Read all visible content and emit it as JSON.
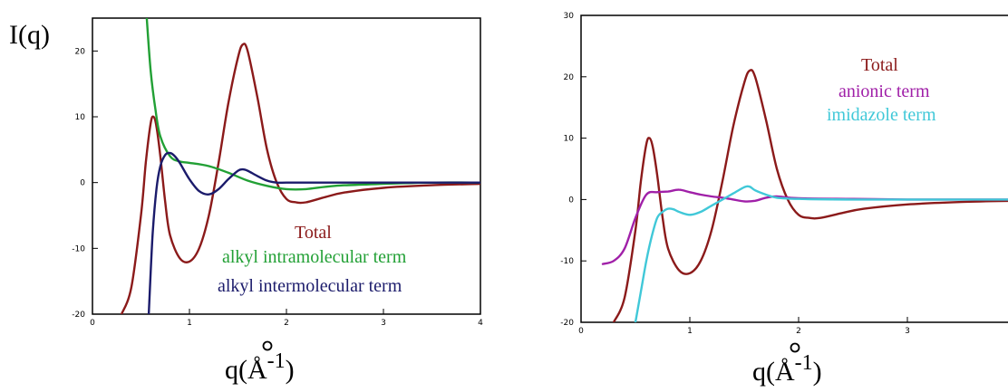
{
  "chart_data": [
    {
      "type": "line",
      "ylabel": "I(q)",
      "xlabel_base": "q(Å",
      "xlabel_exp": "-1",
      "xlabel_close": ")",
      "xlim": [
        0,
        4
      ],
      "ylim": [
        -20,
        25
      ],
      "xticks": [
        "0",
        "1",
        "2",
        "3",
        "4"
      ],
      "yticks": [
        "20",
        "10",
        "0",
        "-10",
        "-20"
      ],
      "ytick_values": [
        20,
        10,
        0,
        -10,
        -20
      ],
      "legend": [
        "Total",
        "alkyl intramolecular term",
        "alkyl intermolecular term"
      ],
      "series": [
        {
          "name": "Total",
          "color": "#8b1a1a",
          "x": [
            0.3,
            0.4,
            0.5,
            0.55,
            0.6,
            0.63,
            0.66,
            0.7,
            0.75,
            0.8,
            0.9,
            1.0,
            1.1,
            1.2,
            1.3,
            1.4,
            1.5,
            1.55,
            1.6,
            1.7,
            1.8,
            1.9,
            2.0,
            2.1,
            2.2,
            2.4,
            2.6,
            3.0,
            3.5,
            4.0
          ],
          "y": [
            -20,
            -16,
            -5,
            3,
            9,
            10,
            8.5,
            4,
            -3,
            -8,
            -11.5,
            -12,
            -10,
            -5,
            3,
            12,
            19,
            21,
            20,
            13,
            5,
            0,
            -2.5,
            -3,
            -3,
            -2.2,
            -1.5,
            -0.8,
            -0.4,
            -0.2
          ]
        },
        {
          "name": "alkyl intramolecular term",
          "color": "#22a035",
          "x": [
            0.56,
            0.6,
            0.65,
            0.7,
            0.8,
            0.9,
            1.0,
            1.2,
            1.4,
            1.6,
            1.8,
            2.0,
            2.2,
            2.5,
            3.0,
            3.5,
            4.0
          ],
          "y": [
            25,
            17,
            11,
            7,
            4,
            3.2,
            3,
            2.5,
            1.5,
            0.3,
            -0.5,
            -1,
            -1,
            -0.5,
            -0.2,
            0,
            0
          ]
        },
        {
          "name": "alkyl intermolecular term",
          "color": "#1b1b6b",
          "x": [
            0.58,
            0.62,
            0.66,
            0.7,
            0.75,
            0.8,
            0.85,
            0.9,
            1.0,
            1.1,
            1.2,
            1.3,
            1.4,
            1.5,
            1.55,
            1.6,
            1.7,
            1.8,
            1.9,
            2.0,
            2.2,
            2.5,
            3.0,
            3.5,
            4.0
          ],
          "y": [
            -20,
            -8,
            -1,
            2.5,
            4.2,
            4.5,
            4,
            3,
            0.5,
            -1.3,
            -1.8,
            -1,
            0.5,
            1.8,
            2,
            1.8,
            1,
            0.3,
            0,
            0,
            0,
            0,
            0,
            0,
            0
          ]
        }
      ]
    },
    {
      "type": "line",
      "ylabel": "",
      "xlabel_base": "q(Å",
      "xlabel_exp": "-1",
      "xlabel_close": ")",
      "xlim": [
        0,
        4
      ],
      "ylim": [
        -20,
        30
      ],
      "xticks": [
        "0",
        "1",
        "2",
        "3"
      ],
      "xtick_values": [
        0,
        1,
        2,
        3
      ],
      "yticks": [
        "30",
        "20",
        "10",
        "0",
        "-10",
        "-20"
      ],
      "ytick_values": [
        30,
        20,
        10,
        0,
        -10,
        -20
      ],
      "legend": [
        "Total",
        "anionic term",
        "imidazole term"
      ],
      "series": [
        {
          "name": "Total",
          "color": "#8b1a1a",
          "x": [
            0.3,
            0.4,
            0.5,
            0.55,
            0.6,
            0.63,
            0.66,
            0.7,
            0.75,
            0.8,
            0.9,
            1.0,
            1.1,
            1.2,
            1.3,
            1.4,
            1.5,
            1.55,
            1.6,
            1.7,
            1.8,
            1.9,
            2.0,
            2.1,
            2.2,
            2.4,
            2.6,
            3.0,
            3.5,
            4.0
          ],
          "y": [
            -20,
            -16,
            -5,
            3,
            9,
            10,
            8.5,
            4,
            -3,
            -8,
            -11.5,
            -12,
            -10,
            -5,
            3,
            12,
            19,
            21,
            20,
            13,
            5,
            0,
            -2.5,
            -3,
            -3,
            -2.2,
            -1.5,
            -0.8,
            -0.4,
            -0.2
          ]
        },
        {
          "name": "anionic term",
          "color": "#a020a8",
          "x": [
            0.2,
            0.3,
            0.4,
            0.5,
            0.6,
            0.7,
            0.8,
            0.9,
            1.0,
            1.1,
            1.2,
            1.3,
            1.4,
            1.5,
            1.6,
            1.7,
            1.8,
            2.0,
            2.5,
            3.0,
            3.5,
            4.0
          ],
          "y": [
            -10.5,
            -10,
            -8,
            -3,
            0.8,
            1.2,
            1.3,
            1.6,
            1.2,
            0.8,
            0.5,
            0.3,
            0,
            -0.3,
            -0.2,
            0.3,
            0.5,
            0.2,
            0.1,
            0,
            0,
            0
          ]
        },
        {
          "name": "imidazole term",
          "color": "#40c8d8",
          "x": [
            0.5,
            0.55,
            0.6,
            0.65,
            0.7,
            0.75,
            0.8,
            0.85,
            0.9,
            1.0,
            1.1,
            1.2,
            1.3,
            1.4,
            1.5,
            1.55,
            1.6,
            1.7,
            1.8,
            2.0,
            2.5,
            3.0,
            3.5,
            4.0
          ],
          "y": [
            -20,
            -15,
            -10,
            -6,
            -3,
            -2,
            -1.5,
            -1.6,
            -2,
            -2.5,
            -2,
            -1,
            0,
            1,
            2,
            2.1,
            1.5,
            0.8,
            0.3,
            0.1,
            0,
            0,
            0,
            0
          ]
        }
      ]
    }
  ]
}
